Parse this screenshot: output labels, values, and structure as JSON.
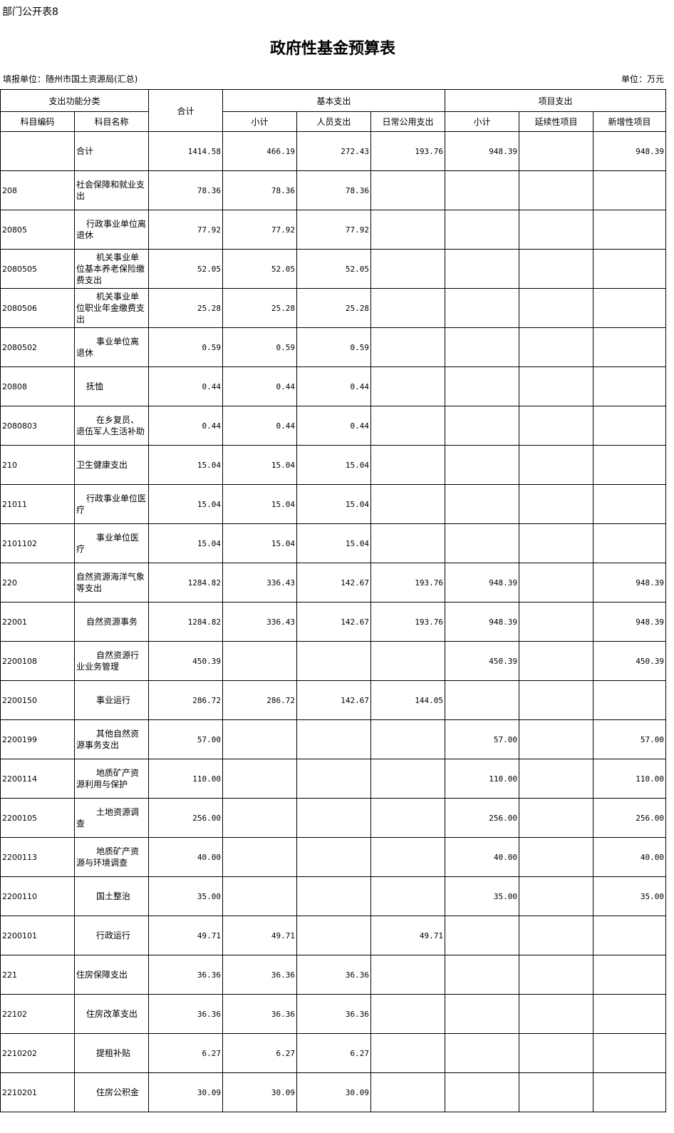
{
  "form_no": "部门公开表8",
  "title": "政府性基金预算表",
  "reporting_unit": "填报单位：随州市国土资源局(汇总)",
  "currency_unit": "单位：万元",
  "headers": {
    "func_class": "支出功能分类",
    "total": "合计",
    "basic": "基本支出",
    "project": "项目支出",
    "code": "科目编码",
    "name": "科目名称",
    "basic_subtotal": "小计",
    "personnel": "人员支出",
    "public": "日常公用支出",
    "project_subtotal": "小计",
    "continuing": "延续性项目",
    "new": "新增性项目"
  },
  "rows": [
    {
      "code": "",
      "name": "合计",
      "level": 0,
      "values": [
        "1414.58",
        "466.19",
        "272.43",
        "193.76",
        "948.39",
        "",
        "948.39"
      ]
    },
    {
      "code": "208",
      "name": "社会保障和就业支出",
      "level": 0,
      "values": [
        "78.36",
        "78.36",
        "78.36",
        "",
        "",
        "",
        ""
      ]
    },
    {
      "code": "20805",
      "name": "行政事业单位离退休",
      "level": 1,
      "values": [
        "77.92",
        "77.92",
        "77.92",
        "",
        "",
        "",
        ""
      ]
    },
    {
      "code": "2080505",
      "name": "机关事业单位基本养老保险缴费支出",
      "level": 2,
      "values": [
        "52.05",
        "52.05",
        "52.05",
        "",
        "",
        "",
        ""
      ]
    },
    {
      "code": "2080506",
      "name": "机关事业单位职业年金缴费支出",
      "level": 2,
      "values": [
        "25.28",
        "25.28",
        "25.28",
        "",
        "",
        "",
        ""
      ]
    },
    {
      "code": "2080502",
      "name": "事业单位离退休",
      "level": 2,
      "values": [
        "0.59",
        "0.59",
        "0.59",
        "",
        "",
        "",
        ""
      ]
    },
    {
      "code": "20808",
      "name": "抚恤",
      "level": 1,
      "values": [
        "0.44",
        "0.44",
        "0.44",
        "",
        "",
        "",
        ""
      ]
    },
    {
      "code": "2080803",
      "name": "在乡复员、退伍军人生活补助",
      "level": 2,
      "values": [
        "0.44",
        "0.44",
        "0.44",
        "",
        "",
        "",
        ""
      ]
    },
    {
      "code": "210",
      "name": "卫生健康支出",
      "level": 0,
      "values": [
        "15.04",
        "15.04",
        "15.04",
        "",
        "",
        "",
        ""
      ]
    },
    {
      "code": "21011",
      "name": "行政事业单位医疗",
      "level": 1,
      "values": [
        "15.04",
        "15.04",
        "15.04",
        "",
        "",
        "",
        ""
      ]
    },
    {
      "code": "2101102",
      "name": "事业单位医疗",
      "level": 2,
      "values": [
        "15.04",
        "15.04",
        "15.04",
        "",
        "",
        "",
        ""
      ]
    },
    {
      "code": "220",
      "name": "自然资源海洋气象等支出",
      "level": 0,
      "values": [
        "1284.82",
        "336.43",
        "142.67",
        "193.76",
        "948.39",
        "",
        "948.39"
      ]
    },
    {
      "code": "22001",
      "name": "自然资源事务",
      "level": 1,
      "values": [
        "1284.82",
        "336.43",
        "142.67",
        "193.76",
        "948.39",
        "",
        "948.39"
      ]
    },
    {
      "code": "2200108",
      "name": "自然资源行业业务管理",
      "level": 2,
      "values": [
        "450.39",
        "",
        "",
        "",
        "450.39",
        "",
        "450.39"
      ]
    },
    {
      "code": "2200150",
      "name": "事业运行",
      "level": 2,
      "values": [
        "286.72",
        "286.72",
        "142.67",
        "144.05",
        "",
        "",
        ""
      ]
    },
    {
      "code": "2200199",
      "name": "其他自然资源事务支出",
      "level": 2,
      "values": [
        "57.00",
        "",
        "",
        "",
        "57.00",
        "",
        "57.00"
      ]
    },
    {
      "code": "2200114",
      "name": "地质矿产资源利用与保护",
      "level": 2,
      "values": [
        "110.00",
        "",
        "",
        "",
        "110.00",
        "",
        "110.00"
      ]
    },
    {
      "code": "2200105",
      "name": "土地资源调查",
      "level": 2,
      "values": [
        "256.00",
        "",
        "",
        "",
        "256.00",
        "",
        "256.00"
      ]
    },
    {
      "code": "2200113",
      "name": "地质矿产资源与环境调查",
      "level": 2,
      "values": [
        "40.00",
        "",
        "",
        "",
        "40.00",
        "",
        "40.00"
      ]
    },
    {
      "code": "2200110",
      "name": "国土整治",
      "level": 2,
      "values": [
        "35.00",
        "",
        "",
        "",
        "35.00",
        "",
        "35.00"
      ]
    },
    {
      "code": "2200101",
      "name": "行政运行",
      "level": 2,
      "values": [
        "49.71",
        "49.71",
        "",
        "49.71",
        "",
        "",
        ""
      ]
    },
    {
      "code": "221",
      "name": "住房保障支出",
      "level": 0,
      "values": [
        "36.36",
        "36.36",
        "36.36",
        "",
        "",
        "",
        ""
      ]
    },
    {
      "code": "22102",
      "name": "住房改革支出",
      "level": 1,
      "values": [
        "36.36",
        "36.36",
        "36.36",
        "",
        "",
        "",
        ""
      ]
    },
    {
      "code": "2210202",
      "name": "提租补贴",
      "level": 2,
      "values": [
        "6.27",
        "6.27",
        "6.27",
        "",
        "",
        "",
        ""
      ]
    },
    {
      "code": "2210201",
      "name": "住房公积金",
      "level": 2,
      "values": [
        "30.09",
        "30.09",
        "30.09",
        "",
        "",
        "",
        ""
      ]
    }
  ]
}
